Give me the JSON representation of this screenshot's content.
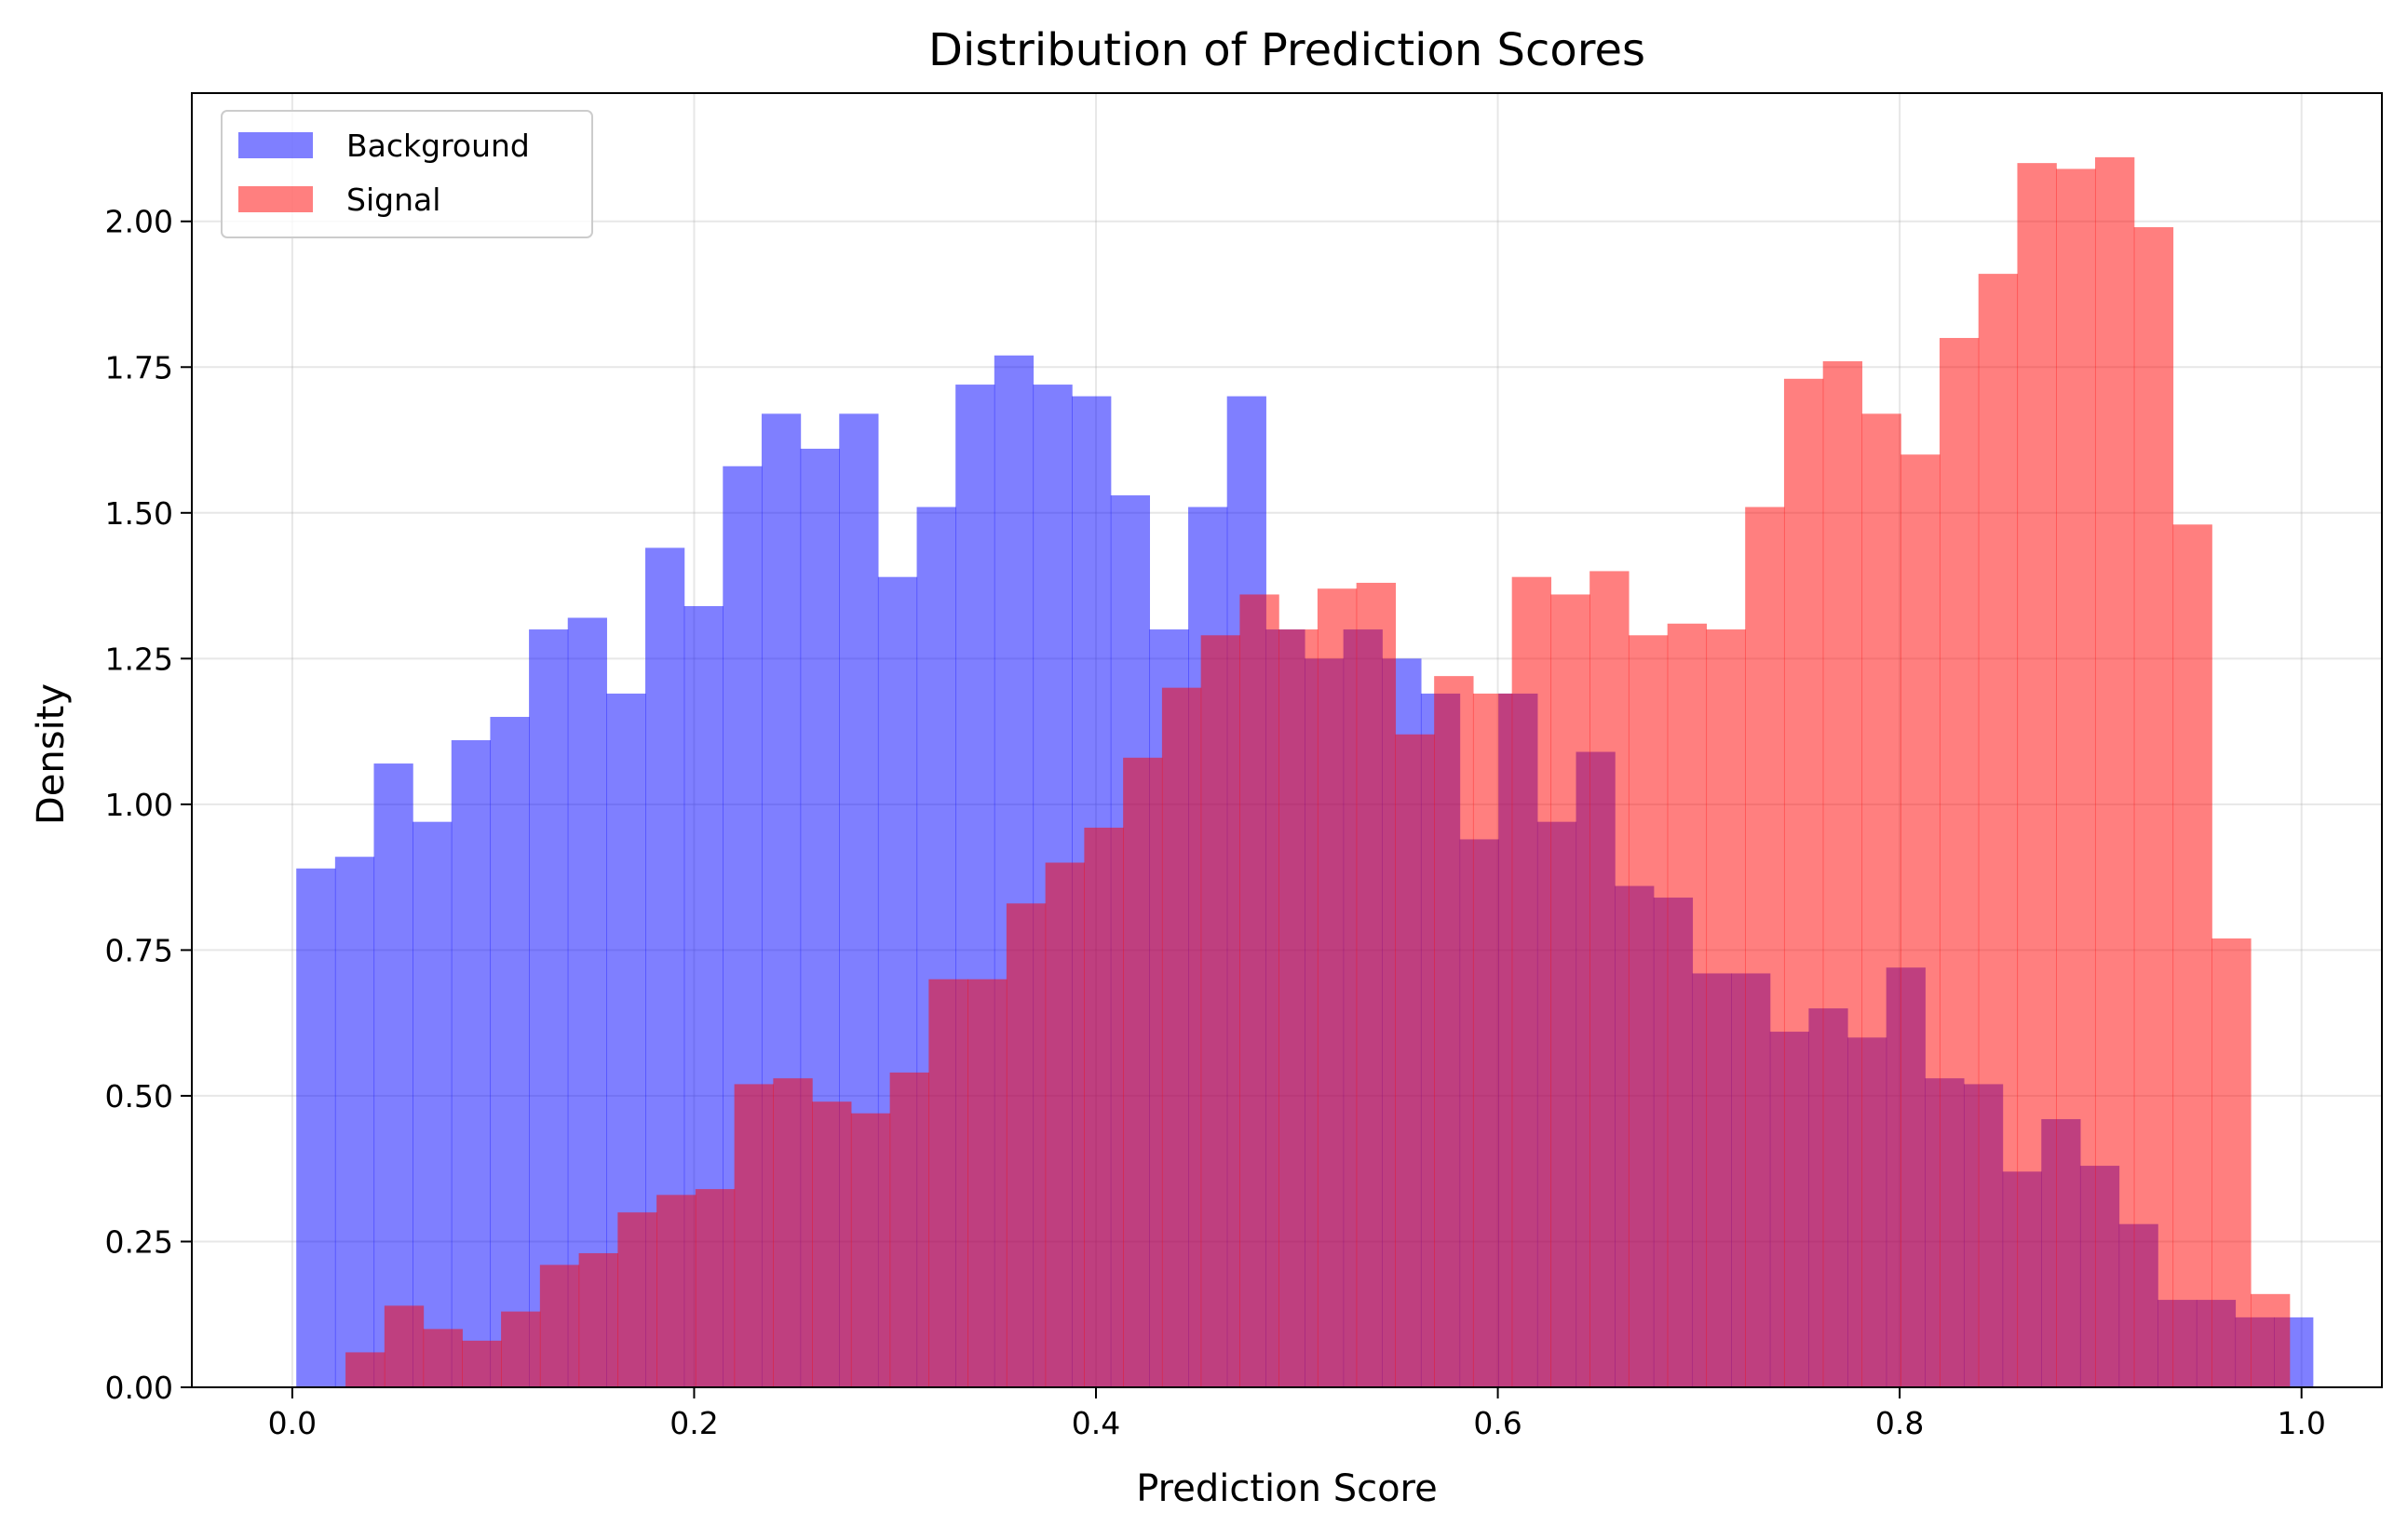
{
  "chart_data": {
    "type": "bar",
    "title": "Distribution of Prediction Scores",
    "xlabel": "Prediction Score",
    "ylabel": "Density",
    "xlim": [
      -0.05,
      1.04
    ],
    "ylim": [
      0,
      2.22
    ],
    "xticks": [
      0.0,
      0.2,
      0.4,
      0.6,
      0.8,
      1.0
    ],
    "xtick_labels": [
      "0.0",
      "0.2",
      "0.4",
      "0.6",
      "0.8",
      "1.0"
    ],
    "yticks": [
      0.0,
      0.25,
      0.5,
      0.75,
      1.0,
      1.25,
      1.5,
      1.75,
      2.0
    ],
    "ytick_labels": [
      "0.00",
      "0.25",
      "0.50",
      "0.75",
      "1.00",
      "1.25",
      "1.50",
      "1.75",
      "2.00"
    ],
    "grid": true,
    "legend_position": "upper-left",
    "overlay_opacity": 0.5,
    "series": [
      {
        "name": "Background",
        "color": "#0000ff",
        "bin_start": 0.002,
        "bin_width": 0.0193,
        "values": [
          0.89,
          0.91,
          1.07,
          0.97,
          1.11,
          1.15,
          1.3,
          1.32,
          1.19,
          1.44,
          1.34,
          1.58,
          1.67,
          1.61,
          1.67,
          1.39,
          1.51,
          1.72,
          1.77,
          1.72,
          1.7,
          1.53,
          1.3,
          1.51,
          1.7,
          1.3,
          1.25,
          1.3,
          1.25,
          1.19,
          0.94,
          1.19,
          0.97,
          1.09,
          0.86,
          0.84,
          0.71,
          0.71,
          0.61,
          0.65,
          0.6,
          0.72,
          0.53,
          0.52,
          0.37,
          0.46,
          0.38,
          0.28,
          0.15,
          0.15,
          0.12,
          0.12
        ]
      },
      {
        "name": "Signal",
        "color": "#ff0000",
        "bin_start": 0.0265,
        "bin_width": 0.01935,
        "values": [
          0.06,
          0.14,
          0.1,
          0.08,
          0.13,
          0.21,
          0.23,
          0.3,
          0.33,
          0.34,
          0.52,
          0.53,
          0.49,
          0.47,
          0.54,
          0.7,
          0.7,
          0.83,
          0.9,
          0.96,
          1.08,
          1.2,
          1.29,
          1.36,
          1.3,
          1.37,
          1.38,
          1.12,
          1.22,
          1.19,
          1.39,
          1.36,
          1.4,
          1.29,
          1.31,
          1.3,
          1.51,
          1.73,
          1.76,
          1.67,
          1.6,
          1.8,
          1.91,
          2.1,
          2.09,
          2.11,
          1.99,
          1.48,
          0.77,
          0.16
        ]
      }
    ]
  }
}
